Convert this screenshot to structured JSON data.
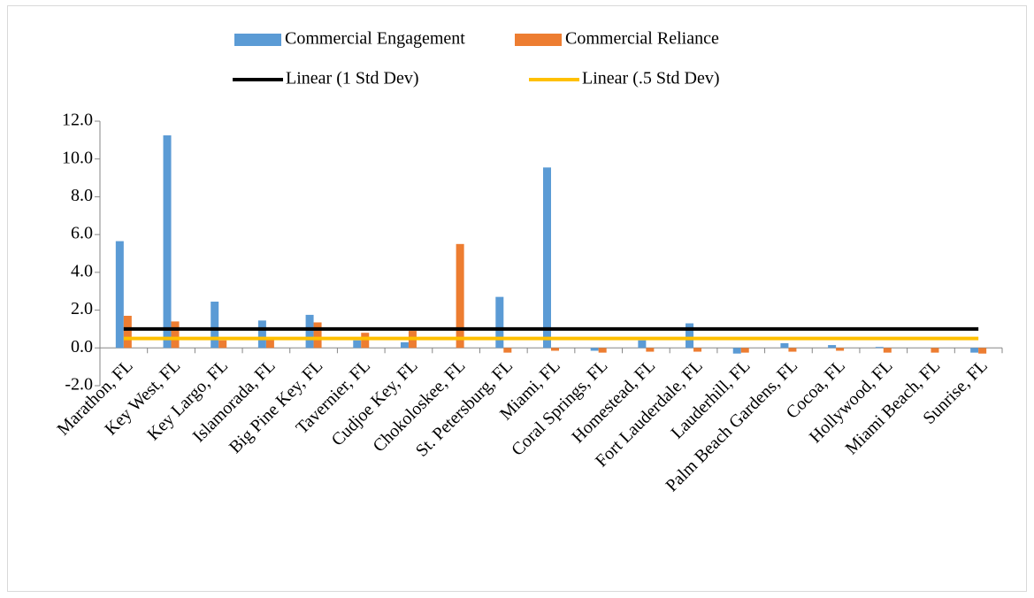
{
  "chart_data": {
    "type": "bar",
    "categories": [
      "Marathon, FL",
      "Key West, FL",
      "Key Largo, FL",
      "Islamorada, FL",
      "Big Pine Key, FL",
      "Tavernier, FL",
      "Cudjoe Key, FL",
      "Chokoloskee, FL",
      "St. Petersburg, FL",
      "Miami, FL",
      "Coral Springs, FL",
      "Homestead, FL",
      "Fort Lauderdale, FL",
      "Lauderhill, FL",
      "Palm Beach Gardens, FL",
      "Cocoa, FL",
      "Hollywood, FL",
      "Miami Beach, FL",
      "Sunrise, FL"
    ],
    "series": [
      {
        "name": "Commercial Engagement",
        "type": "bar",
        "color": "#5b9bd5",
        "values": [
          5.65,
          11.25,
          2.45,
          1.45,
          1.75,
          0.4,
          0.3,
          0.0,
          2.7,
          9.55,
          -0.15,
          0.4,
          1.3,
          -0.3,
          0.25,
          0.15,
          0.05,
          0.0,
          -0.25
        ]
      },
      {
        "name": "Commercial Reliance",
        "type": "bar",
        "color": "#ed7d31",
        "values": [
          1.7,
          1.4,
          0.4,
          0.5,
          1.35,
          0.8,
          0.9,
          5.5,
          -0.25,
          -0.15,
          -0.25,
          -0.2,
          -0.2,
          -0.25,
          -0.2,
          -0.15,
          -0.25,
          -0.25,
          -0.3
        ]
      },
      {
        "name": "Linear (1 Std Dev)",
        "type": "line",
        "color": "#000000",
        "values": [
          1,
          1,
          1,
          1,
          1,
          1,
          1,
          1,
          1,
          1,
          1,
          1,
          1,
          1,
          1,
          1,
          1,
          1,
          1
        ]
      },
      {
        "name": "Linear (.5 Std Dev)",
        "type": "line",
        "color": "#ffc000",
        "values": [
          0.5,
          0.5,
          0.5,
          0.5,
          0.5,
          0.5,
          0.5,
          0.5,
          0.5,
          0.5,
          0.5,
          0.5,
          0.5,
          0.5,
          0.5,
          0.5,
          0.5,
          0.5,
          0.5
        ]
      }
    ],
    "ylim": [
      -2,
      12
    ],
    "yticks": [
      {
        "value": -2,
        "label": "-2.0"
      },
      {
        "value": 0,
        "label": "0.0"
      },
      {
        "value": 2,
        "label": "2.0"
      },
      {
        "value": 4,
        "label": "4.0"
      },
      {
        "value": 6,
        "label": "6.0"
      },
      {
        "value": 8,
        "label": "8.0"
      },
      {
        "value": 10,
        "label": "10.0"
      },
      {
        "value": 12,
        "label": "12.0"
      }
    ],
    "grid": false
  }
}
